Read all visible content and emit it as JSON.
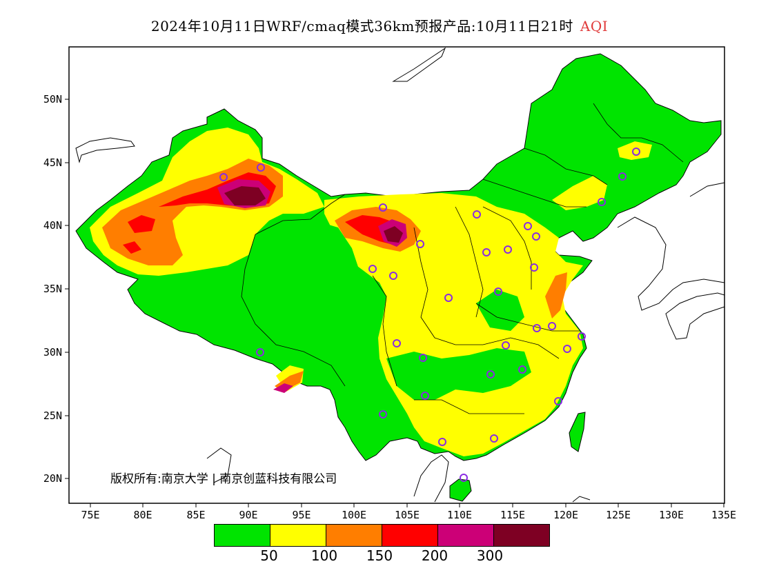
{
  "title": "2024年10月11日WRF/cmaq模式36km预报产品:10月11日21时",
  "title_tag": "AQI",
  "copyright": "版权所有:南京大学 | 南京创蓝科技有限公司",
  "y_labels": [
    "50N",
    "45N",
    "40N",
    "35N",
    "30N",
    "25N",
    "20N"
  ],
  "x_labels": [
    "75E",
    "80E",
    "85E",
    "90E",
    "95E",
    "100E",
    "105E",
    "110E",
    "115E",
    "120E",
    "125E",
    "130E",
    "135E"
  ],
  "legend": {
    "colors": [
      "#00e400",
      "#ffff00",
      "#ff7e00",
      "#ff0000",
      "#cc0077",
      "#7e0023"
    ],
    "labels": [
      "50",
      "100",
      "150",
      "200",
      "300"
    ]
  },
  "colors": {
    "good": "#00e400",
    "moderate": "#ffff00",
    "usg": "#ff7e00",
    "unhealthy": "#ff0000",
    "very_unhealthy": "#cc0077",
    "hazardous": "#7e0023",
    "station_marker": "#8a2be2"
  }
}
